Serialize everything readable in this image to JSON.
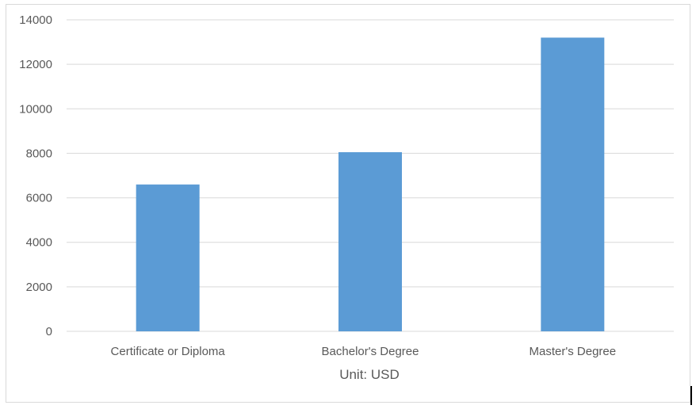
{
  "chart_data": {
    "type": "bar",
    "categories": [
      "Certificate or Diploma",
      "Bachelor's Degree",
      "Master's Degree"
    ],
    "values": [
      6600,
      8050,
      13200
    ],
    "title": "",
    "xlabel": "Unit: USD",
    "ylabel": "",
    "ylim": [
      0,
      14000
    ],
    "yticks": [
      "0",
      "2000",
      "4000",
      "6000",
      "8000",
      "10000",
      "12000",
      "14000"
    ],
    "grid": true,
    "legend": "none",
    "bar_color": "#5b9bd5",
    "grid_color": "#d9d9d9"
  }
}
